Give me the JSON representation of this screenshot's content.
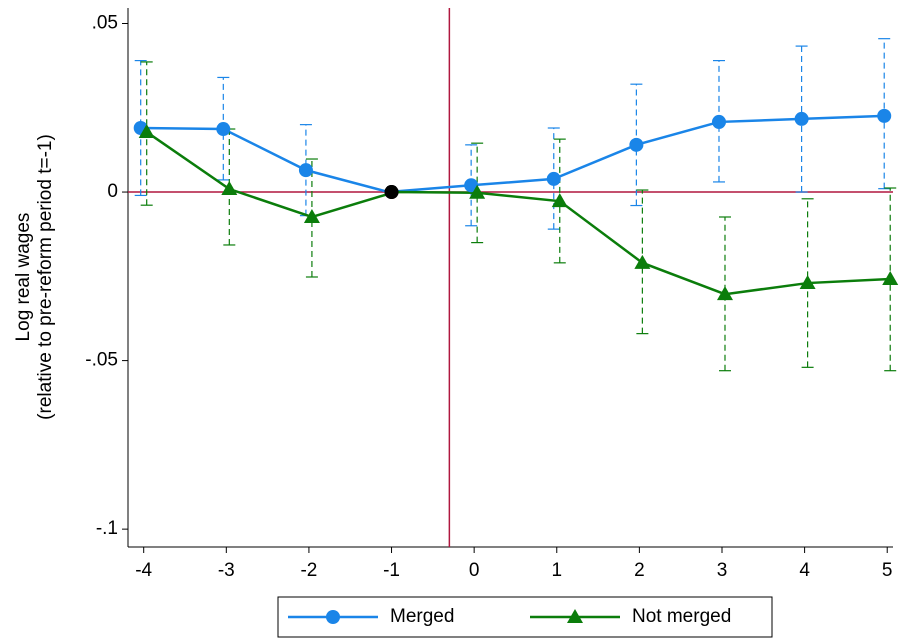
{
  "chart_data": {
    "type": "line",
    "y_label": [
      "Log real wages",
      "(relative to pre-reform period t=-1)"
    ],
    "x": [
      -4,
      -3,
      -2,
      -1,
      0,
      1,
      2,
      3,
      4,
      5
    ],
    "series": [
      {
        "name": "Merged",
        "color": "#1a85e8",
        "marker": "circle",
        "values": [
          0.019,
          0.0187,
          0.0065,
          0,
          0.002,
          0.0039,
          0.014,
          0.0208,
          0.0217,
          0.0226
        ],
        "lower": [
          -0.001,
          0.0036,
          -0.007,
          0,
          -0.01,
          -0.011,
          -0.004,
          0.003,
          0.0,
          0.001
        ],
        "upper": [
          0.039,
          0.034,
          0.02,
          0,
          0.014,
          0.019,
          0.032,
          0.039,
          0.0433,
          0.0455
        ]
      },
      {
        "name": "Not merged",
        "color": "#0b7d0b",
        "marker": "triangle",
        "values": [
          0.0178,
          0.0009,
          -0.0074,
          0,
          -0.0002,
          -0.0027,
          -0.021,
          -0.0303,
          -0.027,
          -0.0258
        ],
        "lower": [
          -0.0039,
          -0.0157,
          -0.0252,
          0,
          -0.015,
          -0.021,
          -0.042,
          -0.053,
          -0.052,
          -0.053
        ],
        "upper": [
          0.0386,
          0.0187,
          0.0098,
          0,
          0.0145,
          0.0157,
          0.0006,
          -0.0074,
          -0.002,
          0.0012
        ]
      }
    ],
    "reference_point": {
      "x": -1,
      "color": "#000000"
    },
    "reference_lines": {
      "x": -0.3,
      "y": 0,
      "color": "#b0173f"
    },
    "xlim": [
      -4.19,
      5.07
    ],
    "ylim": [
      -0.1053,
      0.0546
    ],
    "xticks": [
      -4,
      -3,
      -2,
      -1,
      0,
      1,
      2,
      3,
      4,
      5
    ],
    "yticks": [
      {
        "value": 0.05,
        "label": ".05"
      },
      0,
      {
        "value": -0.05,
        "label": "-.05"
      },
      {
        "value": -0.1,
        "label": "-.1"
      }
    ],
    "legend": "bottom"
  }
}
